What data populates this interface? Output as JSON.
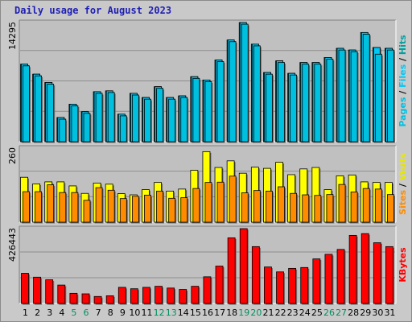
{
  "title": "Daily usage for August 2023",
  "colors": {
    "pages": "#00c0e0",
    "files": "#00c8f8",
    "hits": "#00a0a0",
    "visits": "#ffff00",
    "sites": "#ff8c00",
    "kbytes": "#ff0000",
    "weekend": "#009060",
    "weekday": "#000000"
  },
  "chart_data": [
    {
      "type": "bar",
      "name": "hits-files-pages",
      "ymax_label": "14295",
      "ymax": 14295,
      "legend": {
        "pages": "Pages",
        "files": "Files",
        "hits": "Hits",
        "sep": " / "
      },
      "categories": [
        "1",
        "2",
        "3",
        "4",
        "5",
        "6",
        "7",
        "8",
        "9",
        "10",
        "11",
        "12",
        "13",
        "14",
        "15",
        "16",
        "17",
        "18",
        "19",
        "20",
        "21",
        "22",
        "23",
        "24",
        "25",
        "26",
        "27",
        "28",
        "29",
        "30",
        "31"
      ],
      "series": [
        {
          "name": "Hits",
          "values": [
            9300,
            8100,
            7100,
            2900,
            4500,
            3600,
            6000,
            6100,
            3300,
            5800,
            5300,
            6600,
            5300,
            5500,
            7800,
            7400,
            9800,
            12200,
            14295,
            11700,
            8300,
            9700,
            8200,
            9500,
            9500,
            10100,
            11200,
            11000,
            13100,
            11300,
            11200
          ]
        },
        {
          "name": "Files",
          "values": [
            9300,
            8100,
            7100,
            2900,
            4500,
            3600,
            6000,
            6100,
            3300,
            5800,
            5300,
            6600,
            5300,
            5500,
            7800,
            7400,
            9800,
            12200,
            14295,
            11700,
            8300,
            9700,
            8200,
            9500,
            9500,
            10100,
            11200,
            11000,
            13100,
            11300,
            11200
          ]
        },
        {
          "name": "Pages",
          "values": [
            9100,
            7900,
            6900,
            2700,
            4300,
            3400,
            5800,
            5900,
            3100,
            5600,
            5100,
            6400,
            5100,
            5300,
            7600,
            7200,
            9600,
            12000,
            14095,
            11500,
            8100,
            9500,
            8000,
            9300,
            9300,
            9900,
            11000,
            10800,
            12900,
            10500,
            11000
          ]
        }
      ]
    },
    {
      "type": "bar",
      "name": "visits-sites",
      "ymax_label": "260",
      "ymax": 260,
      "legend": {
        "sites": "Sites",
        "visits": "Visits",
        "sep": " / "
      },
      "categories": [
        "1",
        "2",
        "3",
        "4",
        "5",
        "6",
        "7",
        "8",
        "9",
        "10",
        "11",
        "12",
        "13",
        "14",
        "15",
        "16",
        "17",
        "18",
        "19",
        "20",
        "21",
        "22",
        "23",
        "24",
        "25",
        "26",
        "27",
        "28",
        "29",
        "30",
        "31"
      ],
      "series": [
        {
          "name": "Visits",
          "values": [
            156,
            133,
            140,
            140,
            126,
            100,
            136,
            132,
            99,
            95,
            113,
            138,
            108,
            115,
            180,
            245,
            190,
            213,
            170,
            191,
            187,
            208,
            165,
            185,
            190,
            113,
            161,
            164,
            140,
            138,
            138
          ]
        },
        {
          "name": "Sites",
          "values": [
            106,
            106,
            130,
            103,
            103,
            76,
            120,
            111,
            82,
            90,
            94,
            108,
            83,
            85,
            117,
            138,
            139,
            160,
            102,
            110,
            108,
            123,
            100,
            95,
            93,
            96,
            131,
            105,
            117,
            115,
            96
          ]
        }
      ]
    },
    {
      "type": "bar",
      "name": "kbytes",
      "ymax_label": "426443",
      "ymax": 426443,
      "legend": {
        "kbytes": "KBytes"
      },
      "categories": [
        "1",
        "2",
        "3",
        "4",
        "5",
        "6",
        "7",
        "8",
        "9",
        "10",
        "11",
        "12",
        "13",
        "14",
        "15",
        "16",
        "17",
        "18",
        "19",
        "20",
        "21",
        "22",
        "23",
        "24",
        "25",
        "26",
        "27",
        "28",
        "29",
        "30",
        "31"
      ],
      "series": [
        {
          "name": "KBytes",
          "values": [
            172000,
            150000,
            135000,
            105000,
            58000,
            55000,
            40000,
            44000,
            92000,
            84000,
            92000,
            98000,
            88000,
            80000,
            98000,
            152000,
            213000,
            374000,
            426443,
            324000,
            208000,
            180000,
            200000,
            205000,
            254000,
            280000,
            308000,
            388000,
            398000,
            346000,
            324000
          ]
        }
      ]
    }
  ],
  "weekend_days": [
    "5",
    "6",
    "12",
    "13",
    "19",
    "20",
    "26",
    "27"
  ]
}
